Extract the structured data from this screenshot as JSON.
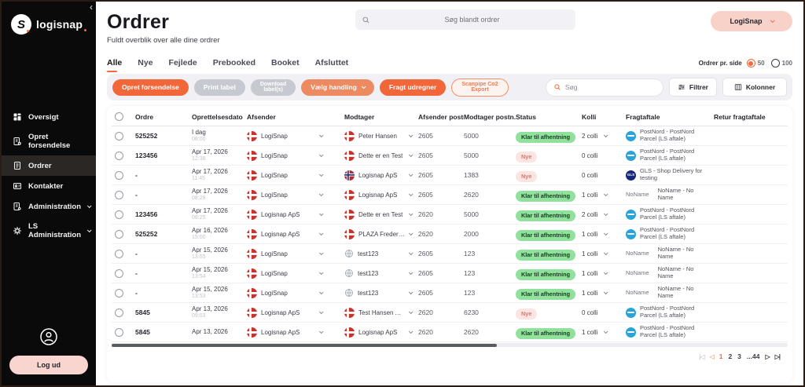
{
  "sidebar": {
    "logo_text": "logisnap",
    "collapse_icon": "‹",
    "items": [
      {
        "label": "Oversigt",
        "icon": "grid",
        "active": false,
        "chevron": false
      },
      {
        "label": "Opret forsendelse",
        "icon": "doc-plus",
        "active": false,
        "chevron": false
      },
      {
        "label": "Ordrer",
        "icon": "doc",
        "active": true,
        "chevron": false
      },
      {
        "label": "Kontakter",
        "icon": "contact",
        "active": false,
        "chevron": false
      },
      {
        "label": "Administration",
        "icon": "doc-gear",
        "active": false,
        "chevron": true
      },
      {
        "label": "LS Administration",
        "icon": "gear",
        "active": false,
        "chevron": true
      }
    ],
    "logout_label": "Log ud"
  },
  "topbar": {
    "search_placeholder": "Søg blandt ordrer",
    "account_label": "LogiSnap"
  },
  "page": {
    "title": "Ordrer",
    "subtitle": "Fuldt overblik over alle dine ordrer"
  },
  "tabs": [
    {
      "label": "Alle",
      "active": true
    },
    {
      "label": "Nye",
      "active": false
    },
    {
      "label": "Fejlede",
      "active": false
    },
    {
      "label": "Prebooked",
      "active": false
    },
    {
      "label": "Booket",
      "active": false
    },
    {
      "label": "Afsluttet",
      "active": false
    }
  ],
  "per_page": {
    "label": "Ordrer pr. side",
    "options": [
      {
        "value": "50",
        "selected": true
      },
      {
        "value": "100",
        "selected": false
      }
    ]
  },
  "toolbar": {
    "buttons": [
      {
        "label": "Opret forsendelse",
        "style": "orange",
        "chevron": false,
        "twoline": false
      },
      {
        "label": "Print label",
        "style": "gray",
        "chevron": false,
        "twoline": false
      },
      {
        "label": "Download label(s)",
        "style": "gray",
        "chevron": false,
        "twoline": true
      },
      {
        "label": "Vælg handling",
        "style": "salmon",
        "chevron": true,
        "twoline": false
      },
      {
        "label": "Fragt udregner",
        "style": "orange",
        "chevron": false,
        "twoline": false
      },
      {
        "label": "Scanpipe Co2 Export",
        "style": "outline",
        "chevron": false,
        "twoline": true
      }
    ],
    "search_placeholder": "Søg",
    "filter_label": "Filtrer",
    "columns_label": "Kolonner"
  },
  "table": {
    "columns": [
      "Ordre",
      "Oprettelsesdato",
      "Afsender",
      "Modtager",
      "Afsender postnu...",
      "Modtager postn...",
      "Status",
      "Kolli",
      "Fragtaftale",
      "Retur fragtaftale"
    ],
    "rows": [
      {
        "order": "525252",
        "date": "I dag",
        "time": "08:00",
        "sender": {
          "flag": "dk",
          "name": "LogiSnap"
        },
        "receiver": {
          "flag": "dk",
          "name": "Peter Hansen"
        },
        "sender_zip": "2605",
        "receiver_zip": "5000",
        "status": {
          "label": "Klar til afhentning",
          "type": "ready"
        },
        "kolli": "2 colli",
        "kolli_chevron": true,
        "freight": {
          "logo": "postnord",
          "text": "PostNord - PostNord Parcel (LS aftale)"
        },
        "return_freight": ""
      },
      {
        "order": "123456",
        "date": "Apr 17, 2026",
        "time": "12:38",
        "sender": {
          "flag": "dk",
          "name": "LogiSnap"
        },
        "receiver": {
          "flag": "dk",
          "name": "Dette er en Test"
        },
        "sender_zip": "2605",
        "receiver_zip": "5000",
        "status": {
          "label": "Nye",
          "type": "new"
        },
        "kolli": "0 colli",
        "kolli_chevron": false,
        "freight": {
          "logo": "postnord",
          "text": "PostNord - PostNord Parcel (LS aftale)"
        },
        "return_freight": ""
      },
      {
        "order": "-",
        "date": "Apr 17, 2026",
        "time": "11:45",
        "sender": {
          "flag": "dk",
          "name": "LogiSnap"
        },
        "receiver": {
          "flag": "no",
          "name": "Logisnap ApS"
        },
        "sender_zip": "2605",
        "receiver_zip": "1383",
        "status": {
          "label": "Nye",
          "type": "new"
        },
        "kolli": "0 colli",
        "kolli_chevron": false,
        "freight": {
          "logo": "gls",
          "text": "GLS - Shop Delivery for testing"
        },
        "return_freight": ""
      },
      {
        "order": "-",
        "date": "Apr 17, 2026",
        "time": "08:28",
        "sender": {
          "flag": "dk",
          "name": "LogiSnap"
        },
        "receiver": {
          "flag": "dk",
          "name": "Logisnap ApS"
        },
        "sender_zip": "2605",
        "receiver_zip": "2620",
        "status": {
          "label": "Klar til afhentning",
          "type": "ready"
        },
        "kolli": "1 colli",
        "kolli_chevron": true,
        "freight": {
          "logo": "noname",
          "prefix": "NoName",
          "text": "NoName - No Name"
        },
        "return_freight": ""
      },
      {
        "order": "123456",
        "date": "Apr 17, 2026",
        "time": "08:25",
        "sender": {
          "flag": "dk",
          "name": "Logisnap ApS"
        },
        "receiver": {
          "flag": "dk",
          "name": "Dette er en Test"
        },
        "sender_zip": "2620",
        "receiver_zip": "5000",
        "status": {
          "label": "Klar til afhentning",
          "type": "ready"
        },
        "kolli": "2 colli",
        "kolli_chevron": true,
        "freight": {
          "logo": "postnord",
          "text": "PostNord - PostNord Parcel (LS aftale)"
        },
        "return_freight": ""
      },
      {
        "order": "525252",
        "date": "Apr 16, 2026",
        "time": "15:00",
        "sender": {
          "flag": "dk",
          "name": "Logisnap ApS"
        },
        "receiver": {
          "flag": "dk",
          "name": "PLAZA Frederiks..."
        },
        "sender_zip": "2620",
        "receiver_zip": "2000",
        "status": {
          "label": "Klar til afhentning",
          "type": "ready"
        },
        "kolli": "1 colli",
        "kolli_chevron": true,
        "freight": {
          "logo": "postnord",
          "text": "PostNord - PostNord Parcel (LS aftale)"
        },
        "return_freight": ""
      },
      {
        "order": "-",
        "date": "Apr 15, 2026",
        "time": "13:55",
        "sender": {
          "flag": "dk",
          "name": "LogiSnap"
        },
        "receiver": {
          "flag": "globe",
          "name": "test123"
        },
        "sender_zip": "2605",
        "receiver_zip": "123",
        "status": {
          "label": "Klar til afhentning",
          "type": "ready"
        },
        "kolli": "1 colli",
        "kolli_chevron": true,
        "freight": {
          "logo": "noname",
          "prefix": "NoName",
          "text": "NoName - No Name"
        },
        "return_freight": ""
      },
      {
        "order": "-",
        "date": "Apr 15, 2026",
        "time": "13:54",
        "sender": {
          "flag": "dk",
          "name": "LogiSnap"
        },
        "receiver": {
          "flag": "globe",
          "name": "test123"
        },
        "sender_zip": "2605",
        "receiver_zip": "123",
        "status": {
          "label": "Klar til afhentning",
          "type": "ready"
        },
        "kolli": "1 colli",
        "kolli_chevron": true,
        "freight": {
          "logo": "noname",
          "prefix": "NoName",
          "text": "NoName - No Name"
        },
        "return_freight": ""
      },
      {
        "order": "-",
        "date": "Apr 15, 2026",
        "time": "13:53",
        "sender": {
          "flag": "dk",
          "name": "LogiSnap"
        },
        "receiver": {
          "flag": "globe",
          "name": "test123"
        },
        "sender_zip": "2605",
        "receiver_zip": "123",
        "status": {
          "label": "Klar til afhentning",
          "type": "ready"
        },
        "kolli": "1 colli",
        "kolli_chevron": true,
        "freight": {
          "logo": "noname",
          "prefix": "NoName",
          "text": "NoName - No Name"
        },
        "return_freight": ""
      },
      {
        "order": "5845",
        "date": "Apr 13, 2026",
        "time": "09:03",
        "sender": {
          "flag": "dk",
          "name": "Logisnap ApS"
        },
        "receiver": {
          "flag": "dk",
          "name": "Test Hansen ApS"
        },
        "sender_zip": "2620",
        "receiver_zip": "6230",
        "status": {
          "label": "Nye",
          "type": "new"
        },
        "kolli": "0 colli",
        "kolli_chevron": false,
        "freight": {
          "logo": "postnord",
          "text": "PostNord - PostNord Parcel (LS aftale)"
        },
        "return_freight": ""
      },
      {
        "order": "5845",
        "date": "Apr 13, 2026",
        "time": "",
        "sender": {
          "flag": "dk",
          "name": "Logisnap ApS"
        },
        "receiver": {
          "flag": "dk",
          "name": "Logisnap ApS"
        },
        "sender_zip": "2620",
        "receiver_zip": "2620",
        "status": {
          "label": "Klar til afhentning",
          "type": "ready"
        },
        "kolli": "1 colli",
        "kolli_chevron": true,
        "freight": {
          "logo": "postnord",
          "text": "PostNord - PostNord Parcel (LS aftale)"
        },
        "return_freight": ""
      }
    ]
  },
  "pagination": {
    "first_icon": "|◁",
    "prev_icon": "◁",
    "pages": [
      "1",
      "2",
      "3",
      "...44"
    ],
    "current": "1",
    "next_icon": "▷",
    "last_icon": "▷|"
  },
  "colors": {
    "accent_orange": "#f26a3d",
    "status_ready_green": "#90e19c",
    "status_new_pink": "#fce4e1",
    "postnord_blue": "#2aa3db",
    "gls_navy": "#16277e",
    "sidebar_black": "#0b0a0a",
    "pill_pink": "#f8d6cf"
  }
}
